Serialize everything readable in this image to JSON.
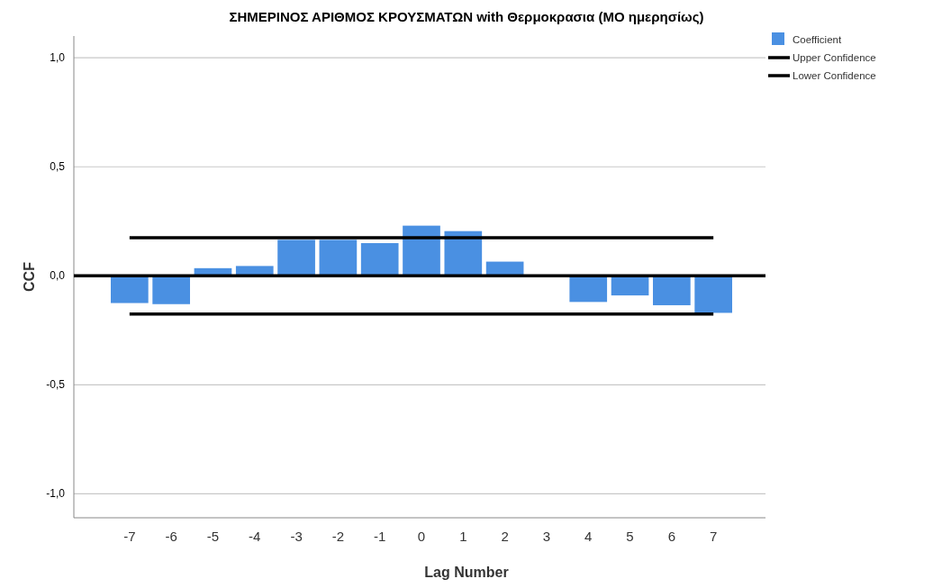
{
  "chart_data": {
    "type": "bar",
    "title": "ΣΗΜΕΡΙΝΟΣ ΑΡΙΘΜΟΣ ΚΡΟΥΣΜΑΤΩΝ with Θερμοκρασια (ΜΟ ημερησίως)",
    "xlabel": "Lag Number",
    "ylabel": "CCF",
    "categories": [
      "-7",
      "-6",
      "-5",
      "-4",
      "-3",
      "-2",
      "-1",
      "0",
      "1",
      "2",
      "3",
      "4",
      "5",
      "6",
      "7"
    ],
    "series": [
      {
        "name": "Coefficient",
        "color": "#4a90e2",
        "values": [
          -0.125,
          -0.13,
          0.035,
          0.045,
          0.165,
          0.165,
          0.15,
          0.23,
          0.205,
          0.065,
          0,
          -0.12,
          -0.09,
          -0.135,
          -0.17
        ]
      },
      {
        "name": "Upper Confidence",
        "type": "line",
        "color": "#000000",
        "values": [
          0.175,
          0.175,
          0.175,
          0.175,
          0.175,
          0.175,
          0.175,
          0.175,
          0.175,
          0.175,
          0.175,
          0.175,
          0.175,
          0.175,
          0.175
        ]
      },
      {
        "name": "Lower Confidence",
        "type": "line",
        "color": "#000000",
        "values": [
          -0.175,
          -0.175,
          -0.175,
          -0.175,
          -0.175,
          -0.175,
          -0.175,
          -0.175,
          -0.175,
          -0.175,
          -0.175,
          -0.175,
          -0.175,
          -0.175,
          -0.175
        ]
      }
    ],
    "ylim": [
      -1.11,
      1.1
    ],
    "yticks": [
      {
        "value": -1,
        "label": "-1,0"
      },
      {
        "value": -0.5,
        "label": "-0,5"
      },
      {
        "value": 0,
        "label": "0,0"
      },
      {
        "value": 0.5,
        "label": "0,5"
      },
      {
        "value": 1,
        "label": "1,0"
      }
    ],
    "ref_lines": [
      {
        "axis": "y",
        "value": 0,
        "color": "#000000"
      }
    ],
    "grid": "y",
    "legend": "top right",
    "marker": "none",
    "line_style": "solid"
  }
}
